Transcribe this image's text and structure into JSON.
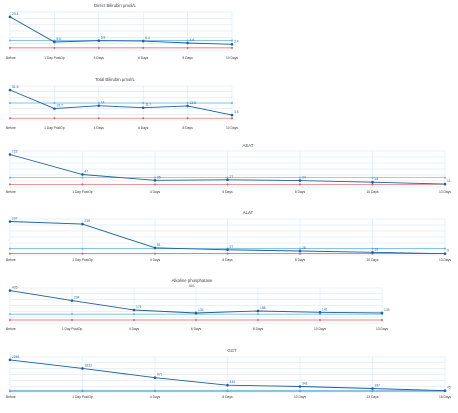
{
  "colors": {
    "series_main": "#1f5f9e",
    "series_upper": "#5bb3e0",
    "series_lower": "#e05a5a",
    "grid": "#cfe3f7",
    "label_main": "#1f5f9e",
    "label_ref": "#3a9ad4"
  },
  "chart_data": [
    {
      "type": "line",
      "title": "Direct Bilirubin µmol/L",
      "categories": [
        "Before",
        "1 Day PostOp",
        "4 Days",
        "6 Days",
        "8 Days",
        "10 Days"
      ],
      "series": [
        {
          "values": [
            29.4,
            5.6,
            6.8,
            6.4,
            4.6,
            3.4
          ]
        },
        {
          "values": [
            7.0,
            7.0,
            7.0,
            7.0,
            7.0,
            7.0
          ]
        },
        {
          "values": [
            0,
            0,
            0,
            0,
            0,
            0
          ]
        }
      ],
      "labels": [
        "29.4",
        "5.6",
        "6.8",
        "6.4",
        "4.6",
        "3.4"
      ],
      "ylim": [
        -2,
        34
      ]
    },
    {
      "type": "line",
      "title": "Total Bilirubin µmol/L",
      "categories": [
        "Before",
        "1 Day PostOp",
        "4 Days",
        "6 Days",
        "8 Days",
        "10 Days"
      ],
      "series": [
        {
          "values": [
            31.5,
            10.7,
            14,
            11.7,
            13.8,
            3.5
          ]
        },
        {
          "values": [
            17,
            17,
            17,
            17,
            17,
            17
          ]
        },
        {
          "values": [
            0,
            0,
            0,
            0,
            0,
            0
          ]
        }
      ],
      "labels": [
        "31.5",
        "10.7",
        "14",
        "11.7",
        "13.8",
        "3.5"
      ],
      "ylim": [
        -2,
        36
      ]
    },
    {
      "type": "line",
      "title": "ASAT",
      "categories": [
        "Before",
        "1 Day PostOp",
        "4 Days",
        "6 Days",
        "8 Days",
        "10 Days",
        "13 Days"
      ],
      "series": [
        {
          "values": [
            122,
            47,
            25,
            27,
            24,
            18,
            11
          ]
        },
        {
          "values": [
            35,
            35,
            35,
            35,
            35,
            35,
            35
          ]
        },
        {
          "values": [
            10,
            10,
            10,
            10,
            10,
            10,
            10
          ]
        }
      ],
      "labels": [
        "122",
        "47",
        "25",
        "27",
        "24",
        "18",
        "11"
      ],
      "ylim": [
        0,
        135
      ]
    },
    {
      "type": "line",
      "title": "ALAT",
      "categories": [
        "Before",
        "1 Day PostOp",
        "4 Days",
        "6 Days",
        "8 Days",
        "10 Days",
        "13 Days"
      ],
      "series": [
        {
          "values": [
            237,
            219,
            51,
            37,
            28,
            19,
            9
          ]
        },
        {
          "values": [
            45,
            45,
            45,
            45,
            45,
            45,
            45
          ]
        },
        {
          "values": [
            10,
            10,
            10,
            10,
            10,
            10,
            10
          ]
        }
      ],
      "labels": [
        "237",
        "219",
        "51",
        "37",
        "28",
        "19",
        "9"
      ],
      "ylim": [
        0,
        255
      ]
    },
    {
      "type": "line",
      "title": "Alkaline phosphatase",
      "subtitle": "IU/L",
      "categories": [
        "Before",
        "1 Day PostOp",
        "4 Days",
        "6 Days",
        "8 Days",
        "10 Days",
        "13 Days"
      ],
      "series": [
        {
          "values": [
            426,
            294,
            171,
            132,
            158,
            141,
            133
          ]
        },
        {
          "values": [
            117,
            117,
            117,
            117,
            117,
            117,
            117
          ]
        },
        {
          "values": [
            40,
            40,
            40,
            40,
            40,
            40,
            40
          ]
        }
      ],
      "labels": [
        "426",
        "294",
        "171",
        "132",
        "158",
        "141",
        "133"
      ],
      "ylim": [
        0,
        460
      ]
    },
    {
      "type": "line",
      "title": "GGT",
      "categories": [
        "Before",
        "1 Day PostOp",
        "4 Days",
        "8 Days",
        "10 Days",
        "13 Days",
        "18 Days"
      ],
      "series": [
        {
          "values": [
            2246,
            1633,
            971,
            434,
            341,
            197,
            45
          ]
        },
        {
          "values": [
            60,
            60,
            60,
            60,
            60,
            60,
            60
          ]
        },
        {
          "values": [
            8,
            8,
            8,
            8,
            8,
            8,
            8
          ]
        }
      ],
      "labels": [
        "2246",
        "1633",
        "971",
        "434",
        "341",
        "197",
        "45"
      ],
      "ylim": [
        -50,
        2450
      ]
    }
  ]
}
